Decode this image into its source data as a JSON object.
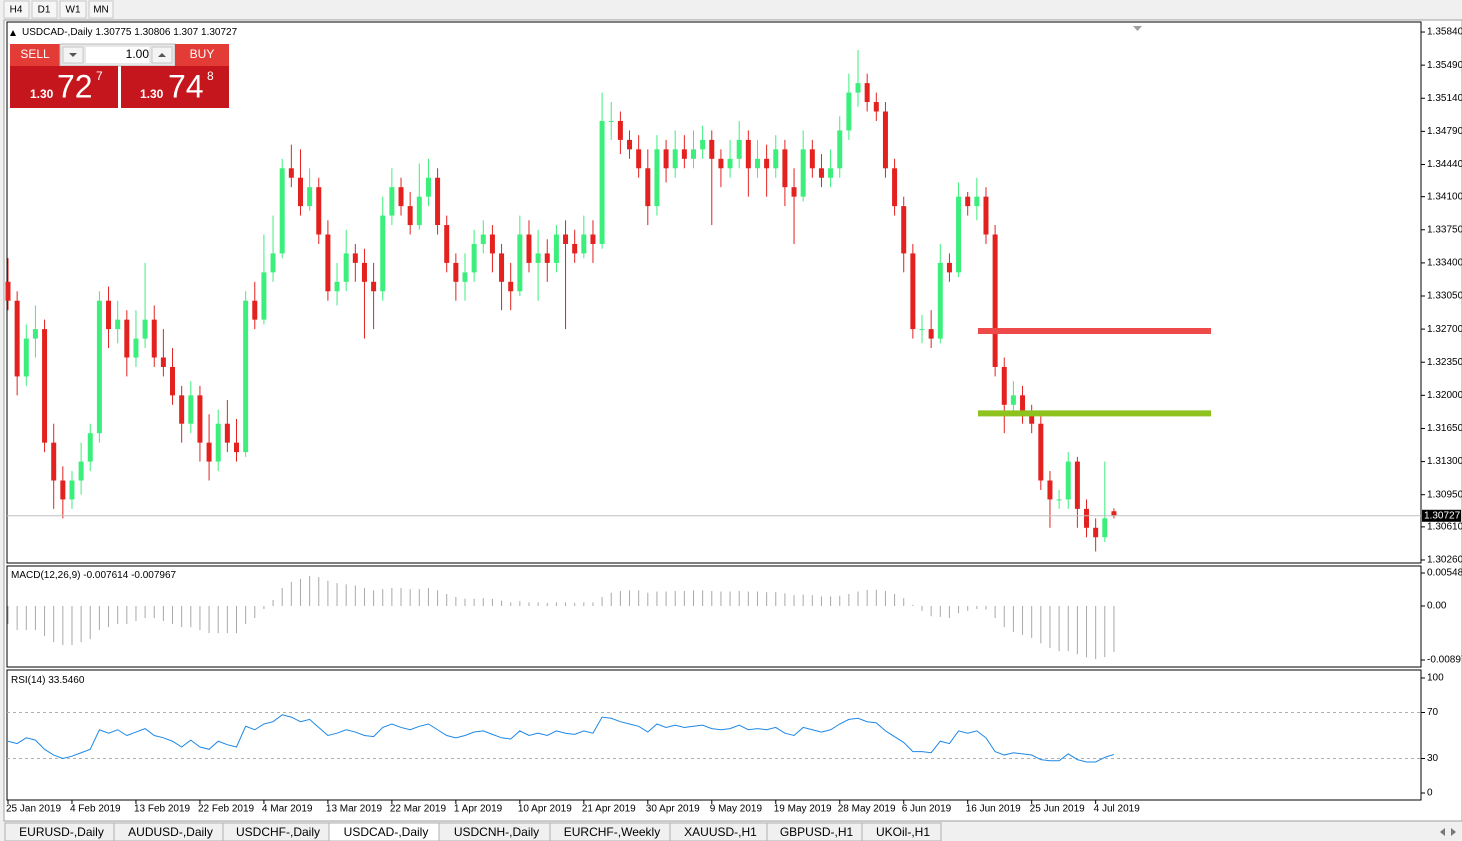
{
  "toolbar": [
    "H4",
    "D1",
    "W1",
    "MN"
  ],
  "chart_data": {
    "type": "candlestick",
    "symbol": "USDCAD-,Daily",
    "categories": [
      "25 Jan 2019",
      null,
      null,
      null,
      null,
      null,
      null,
      "4 Feb 2019",
      null,
      null,
      null,
      null,
      null,
      null,
      "13 Feb 2019",
      null,
      null,
      null,
      null,
      null,
      null,
      "22 Feb 2019",
      null,
      null,
      null,
      null,
      null,
      null,
      "4 Mar 2019",
      null,
      null,
      null,
      null,
      null,
      null,
      "13 Mar 2019",
      null,
      null,
      null,
      null,
      null,
      null,
      "22 Mar 2019",
      null,
      null,
      null,
      null,
      null,
      null,
      "1 Apr 2019",
      null,
      null,
      null,
      null,
      null,
      null,
      "10 Apr 2019",
      null,
      null,
      null,
      null,
      null,
      null,
      "21 Apr 2019",
      null,
      null,
      null,
      null,
      null,
      null,
      "30 Apr 2019",
      null,
      null,
      null,
      null,
      null,
      null,
      "9 May 2019",
      null,
      null,
      null,
      null,
      null,
      null,
      "19 May 2019",
      null,
      null,
      null,
      null,
      null,
      null,
      "28 May 2019",
      null,
      null,
      null,
      null,
      null,
      null,
      "6 Jun 2019",
      null,
      null,
      null,
      null,
      null,
      null,
      "16 Jun 2019",
      null,
      null,
      null,
      null,
      null,
      null,
      "25 Jun 2019",
      null,
      null,
      null,
      null,
      null,
      null,
      "4 Jul 2019",
      null,
      null
    ],
    "candles": [
      [
        1.332,
        1.3345,
        1.329,
        1.33
      ],
      [
        1.33,
        1.331,
        1.32,
        1.322
      ],
      [
        1.322,
        1.3275,
        1.321,
        1.326
      ],
      [
        1.326,
        1.3295,
        1.324,
        1.327
      ],
      [
        1.327,
        1.328,
        1.314,
        1.315
      ],
      [
        1.315,
        1.317,
        1.308,
        1.311
      ],
      [
        1.311,
        1.3125,
        1.307,
        1.309
      ],
      [
        1.309,
        1.312,
        1.308,
        1.311
      ],
      [
        1.311,
        1.315,
        1.3095,
        1.313
      ],
      [
        1.313,
        1.317,
        1.312,
        1.316
      ],
      [
        1.316,
        1.331,
        1.315,
        1.33
      ],
      [
        1.33,
        1.3315,
        1.325,
        1.327
      ],
      [
        1.327,
        1.33,
        1.3255,
        1.328
      ],
      [
        1.328,
        1.329,
        1.322,
        1.324
      ],
      [
        1.324,
        1.329,
        1.323,
        1.326
      ],
      [
        1.326,
        1.334,
        1.325,
        1.328
      ],
      [
        1.328,
        1.3295,
        1.323,
        1.324
      ],
      [
        1.324,
        1.327,
        1.322,
        1.323
      ],
      [
        1.323,
        1.325,
        1.319,
        1.32
      ],
      [
        1.32,
        1.321,
        1.315,
        1.317
      ],
      [
        1.317,
        1.3215,
        1.316,
        1.32
      ],
      [
        1.32,
        1.321,
        1.313,
        1.315
      ],
      [
        1.315,
        1.318,
        1.311,
        1.313
      ],
      [
        1.313,
        1.3185,
        1.312,
        1.317
      ],
      [
        1.317,
        1.3195,
        1.314,
        1.315
      ],
      [
        1.315,
        1.3175,
        1.313,
        1.314
      ],
      [
        1.314,
        1.331,
        1.3135,
        1.33
      ],
      [
        1.33,
        1.332,
        1.327,
        1.328
      ],
      [
        1.328,
        1.337,
        1.3275,
        1.333
      ],
      [
        1.333,
        1.339,
        1.332,
        1.335
      ],
      [
        1.335,
        1.345,
        1.3345,
        1.344
      ],
      [
        1.344,
        1.3465,
        1.342,
        1.343
      ],
      [
        1.343,
        1.346,
        1.339,
        1.34
      ],
      [
        1.34,
        1.344,
        1.3395,
        1.342
      ],
      [
        1.342,
        1.343,
        1.336,
        1.337
      ],
      [
        1.337,
        1.3385,
        1.33,
        1.331
      ],
      [
        1.331,
        1.334,
        1.3295,
        1.332
      ],
      [
        1.332,
        1.3375,
        1.331,
        1.335
      ],
      [
        1.335,
        1.336,
        1.332,
        1.334
      ],
      [
        1.334,
        1.3355,
        1.326,
        1.332
      ],
      [
        1.332,
        1.334,
        1.327,
        1.331
      ],
      [
        1.331,
        1.341,
        1.33,
        1.339
      ],
      [
        1.339,
        1.344,
        1.338,
        1.342
      ],
      [
        1.342,
        1.343,
        1.339,
        1.34
      ],
      [
        1.34,
        1.3415,
        1.337,
        1.338
      ],
      [
        1.338,
        1.3445,
        1.3375,
        1.341
      ],
      [
        1.341,
        1.345,
        1.34,
        1.343
      ],
      [
        1.343,
        1.344,
        1.337,
        1.338
      ],
      [
        1.338,
        1.339,
        1.333,
        1.334
      ],
      [
        1.334,
        1.335,
        1.33,
        1.332
      ],
      [
        1.332,
        1.335,
        1.33,
        1.333
      ],
      [
        1.333,
        1.3375,
        1.332,
        1.336
      ],
      [
        1.336,
        1.3385,
        1.335,
        1.337
      ],
      [
        1.337,
        1.338,
        1.333,
        1.335
      ],
      [
        1.335,
        1.336,
        1.329,
        1.332
      ],
      [
        1.332,
        1.334,
        1.329,
        1.331
      ],
      [
        1.331,
        1.339,
        1.3305,
        1.337
      ],
      [
        1.337,
        1.3385,
        1.333,
        1.334
      ],
      [
        1.334,
        1.3375,
        1.33,
        1.335
      ],
      [
        1.335,
        1.3365,
        1.332,
        1.334
      ],
      [
        1.334,
        1.338,
        1.333,
        1.337
      ],
      [
        1.337,
        1.3385,
        1.327,
        1.336
      ],
      [
        1.336,
        1.3375,
        1.334,
        1.335
      ],
      [
        1.335,
        1.339,
        1.3345,
        1.337
      ],
      [
        1.337,
        1.3385,
        1.334,
        1.336
      ],
      [
        1.336,
        1.352,
        1.3355,
        1.349
      ],
      [
        1.349,
        1.351,
        1.347,
        1.349
      ],
      [
        1.349,
        1.35,
        1.3455,
        1.347
      ],
      [
        1.347,
        1.348,
        1.345,
        1.346
      ],
      [
        1.346,
        1.3475,
        1.343,
        1.344
      ],
      [
        1.344,
        1.346,
        1.338,
        1.34
      ],
      [
        1.34,
        1.3475,
        1.339,
        1.346
      ],
      [
        1.346,
        1.347,
        1.3425,
        1.344
      ],
      [
        1.344,
        1.348,
        1.343,
        1.346
      ],
      [
        1.346,
        1.3475,
        1.344,
        1.345
      ],
      [
        1.345,
        1.348,
        1.344,
        1.346
      ],
      [
        1.346,
        1.3485,
        1.345,
        1.347
      ],
      [
        1.347,
        1.348,
        1.338,
        1.345
      ],
      [
        1.345,
        1.346,
        1.342,
        1.344
      ],
      [
        1.344,
        1.347,
        1.343,
        1.345
      ],
      [
        1.345,
        1.349,
        1.344,
        1.347
      ],
      [
        1.347,
        1.348,
        1.341,
        1.344
      ],
      [
        1.344,
        1.347,
        1.343,
        1.345
      ],
      [
        1.345,
        1.3465,
        1.341,
        1.344
      ],
      [
        1.344,
        1.3475,
        1.343,
        1.346
      ],
      [
        1.346,
        1.347,
        1.34,
        1.342
      ],
      [
        1.342,
        1.344,
        1.336,
        1.341
      ],
      [
        1.341,
        1.348,
        1.3405,
        1.346
      ],
      [
        1.346,
        1.347,
        1.343,
        1.344
      ],
      [
        1.344,
        1.3455,
        1.342,
        1.343
      ],
      [
        1.343,
        1.346,
        1.342,
        1.344
      ],
      [
        1.344,
        1.3495,
        1.343,
        1.348
      ],
      [
        1.348,
        1.354,
        1.347,
        1.352
      ],
      [
        1.352,
        1.3565,
        1.3505,
        1.353
      ],
      [
        1.353,
        1.354,
        1.35,
        1.351
      ],
      [
        1.351,
        1.352,
        1.349,
        1.35
      ],
      [
        1.35,
        1.351,
        1.343,
        1.344
      ],
      [
        1.344,
        1.345,
        1.339,
        1.34
      ],
      [
        1.34,
        1.341,
        1.333,
        1.335
      ],
      [
        1.335,
        1.336,
        1.326,
        1.327
      ],
      [
        1.327,
        1.3285,
        1.3255,
        1.327
      ],
      [
        1.327,
        1.329,
        1.325,
        1.326
      ],
      [
        1.326,
        1.336,
        1.3255,
        1.334
      ],
      [
        1.334,
        1.335,
        1.332,
        1.333
      ],
      [
        1.333,
        1.3425,
        1.3325,
        1.341
      ],
      [
        1.341,
        1.3415,
        1.339,
        1.34
      ],
      [
        1.34,
        1.343,
        1.3385,
        1.341
      ],
      [
        1.341,
        1.342,
        1.336,
        1.337
      ],
      [
        1.337,
        1.338,
        1.322,
        1.323
      ],
      [
        1.323,
        1.324,
        1.316,
        1.319
      ],
      [
        1.319,
        1.3215,
        1.318,
        1.32
      ],
      [
        1.32,
        1.321,
        1.317,
        1.318
      ],
      [
        1.318,
        1.319,
        1.316,
        1.317
      ],
      [
        1.317,
        1.318,
        1.31,
        1.311
      ],
      [
        1.311,
        1.312,
        1.306,
        1.309
      ],
      [
        1.309,
        1.31,
        1.308,
        1.309
      ],
      [
        1.309,
        1.314,
        1.308,
        1.313
      ],
      [
        1.313,
        1.3135,
        1.306,
        1.308
      ],
      [
        1.308,
        1.309,
        1.305,
        1.306
      ],
      [
        1.306,
        1.307,
        1.3035,
        1.305
      ],
      [
        1.305,
        1.313,
        1.3045,
        1.307
      ],
      [
        1.30775,
        1.30806,
        1.307,
        1.30727
      ]
    ],
    "colors": {
      "up": "#3cef7c",
      "down": "#e3211f",
      "bid_line": "#c0c0c0"
    },
    "ylim": [
      1.30228,
      1.35946
    ],
    "yticks": [
      {
        "value": 1.3584,
        "label": "1.35840"
      },
      {
        "value": 1.3549,
        "label": "1.35490"
      },
      {
        "value": 1.3514,
        "label": "1.35140"
      },
      {
        "value": 1.3479,
        "label": "1.34790"
      },
      {
        "value": 1.3444,
        "label": "1.34440"
      },
      {
        "value": 1.341,
        "label": "1.34100"
      },
      {
        "value": 1.3375,
        "label": "1.33750"
      },
      {
        "value": 1.334,
        "label": "1.33400"
      },
      {
        "value": 1.3305,
        "label": "1.33050"
      },
      {
        "value": 1.327,
        "label": "1.32700"
      },
      {
        "value": 1.3235,
        "label": "1.32350"
      },
      {
        "value": 1.32,
        "label": "1.32000"
      },
      {
        "value": 1.3165,
        "label": "1.31650"
      },
      {
        "value": 1.313,
        "label": "1.31300"
      },
      {
        "value": 1.3095,
        "label": "1.30950"
      },
      {
        "value": 1.3061,
        "label": "1.30610"
      },
      {
        "value": 1.3026,
        "label": "1.30260"
      }
    ],
    "levels": [
      {
        "value": 1.3268,
        "color": "#ee4a4a"
      },
      {
        "value": 1.3181,
        "color": "#8ec21e"
      }
    ],
    "macd": {
      "label": "MACD(12,26,9)",
      "color": "#a8a8a8",
      "values": [
        -0.003,
        -0.004,
        -0.004,
        -0.004,
        -0.005,
        -0.006,
        -0.0065,
        -0.0065,
        -0.006,
        -0.0055,
        -0.004,
        -0.0035,
        -0.003,
        -0.003,
        -0.0025,
        -0.002,
        -0.002,
        -0.0025,
        -0.003,
        -0.0035,
        -0.0035,
        -0.004,
        -0.0045,
        -0.0045,
        -0.0045,
        -0.0045,
        -0.003,
        -0.002,
        -0.0005,
        0.001,
        0.003,
        0.004,
        0.0045,
        0.005,
        0.0048,
        0.0042,
        0.0038,
        0.0036,
        0.0034,
        0.003,
        0.0026,
        0.0028,
        0.003,
        0.003,
        0.0028,
        0.0028,
        0.003,
        0.0026,
        0.002,
        0.0015,
        0.0012,
        0.0012,
        0.0013,
        0.0012,
        0.0009,
        0.0006,
        0.0008,
        0.0006,
        0.0006,
        0.0005,
        0.0006,
        0.0006,
        0.0005,
        0.0006,
        0.0006,
        0.0015,
        0.0022,
        0.0025,
        0.0026,
        0.0026,
        0.0022,
        0.0024,
        0.0024,
        0.0025,
        0.0025,
        0.0026,
        0.0026,
        0.0025,
        0.0024,
        0.0024,
        0.0025,
        0.0024,
        0.0024,
        0.0023,
        0.0023,
        0.0021,
        0.0018,
        0.0019,
        0.0018,
        0.0016,
        0.0016,
        0.0017,
        0.002,
        0.0024,
        0.0027,
        0.0027,
        0.0025,
        0.002,
        0.0013,
        0.0002,
        -0.0008,
        -0.0017,
        -0.0018,
        -0.002,
        -0.0012,
        -0.0008,
        -0.0005,
        -0.0006,
        -0.002,
        -0.0035,
        -0.0043,
        -0.0048,
        -0.0053,
        -0.0062,
        -0.007,
        -0.0075,
        -0.0075,
        -0.008,
        -0.0085,
        -0.0088,
        -0.0085,
        -0.007614
      ],
      "signal": -0.007967,
      "ylim": [
        -0.01013,
        0.00648
      ],
      "yticks": [
        0.005484,
        {
          "value": 0,
          "label": "0.00"
        },
        -0.00897
      ]
    },
    "rsi": {
      "label": "RSI(14)",
      "color": "#1e88e5",
      "values": [
        45,
        43,
        48,
        46,
        38,
        33,
        30,
        32,
        35,
        38,
        55,
        52,
        55,
        50,
        53,
        56,
        50,
        48,
        45,
        40,
        46,
        40,
        38,
        45,
        42,
        40,
        58,
        55,
        60,
        62,
        68,
        66,
        62,
        64,
        57,
        50,
        52,
        55,
        53,
        50,
        49,
        57,
        60,
        57,
        55,
        58,
        60,
        55,
        50,
        48,
        50,
        53,
        54,
        51,
        48,
        47,
        54,
        50,
        52,
        50,
        54,
        52,
        51,
        54,
        52,
        66,
        65,
        62,
        60,
        58,
        53,
        60,
        57,
        59,
        57,
        58,
        59,
        56,
        55,
        56,
        59,
        55,
        56,
        55,
        57,
        52,
        50,
        57,
        55,
        53,
        55,
        60,
        64,
        65,
        62,
        61,
        54,
        49,
        44,
        36,
        36,
        35,
        45,
        43,
        54,
        52,
        54,
        48,
        36,
        33,
        35,
        34,
        33,
        29,
        28,
        28,
        34,
        29,
        27,
        27,
        31,
        33.546
      ],
      "reading": {
        "value": 33.546,
        "label": "33.5460"
      },
      "ylim": [
        -6.1,
        106.1
      ],
      "yticks": [
        100,
        70,
        30,
        0
      ],
      "levels": [
        70,
        30
      ]
    }
  },
  "trade": {
    "sell": "SELL",
    "lot": "1.00",
    "buy": "BUY",
    "bid": {
      "big": "1.30",
      "pips": "72",
      "point": "7"
    },
    "ask": {
      "big": "1.30",
      "pips": "74",
      "point": "8"
    }
  },
  "tabs": [
    "EURUSD-,Daily",
    "AUDUSD-,Daily",
    "USDCHF-,Daily",
    "USDCAD-,Daily",
    "USDCNH-,Daily",
    "EURCHF-,Weekly",
    "XAUUSD-,H1",
    "GBPUSD-,H1",
    "UKOil-,H1"
  ]
}
